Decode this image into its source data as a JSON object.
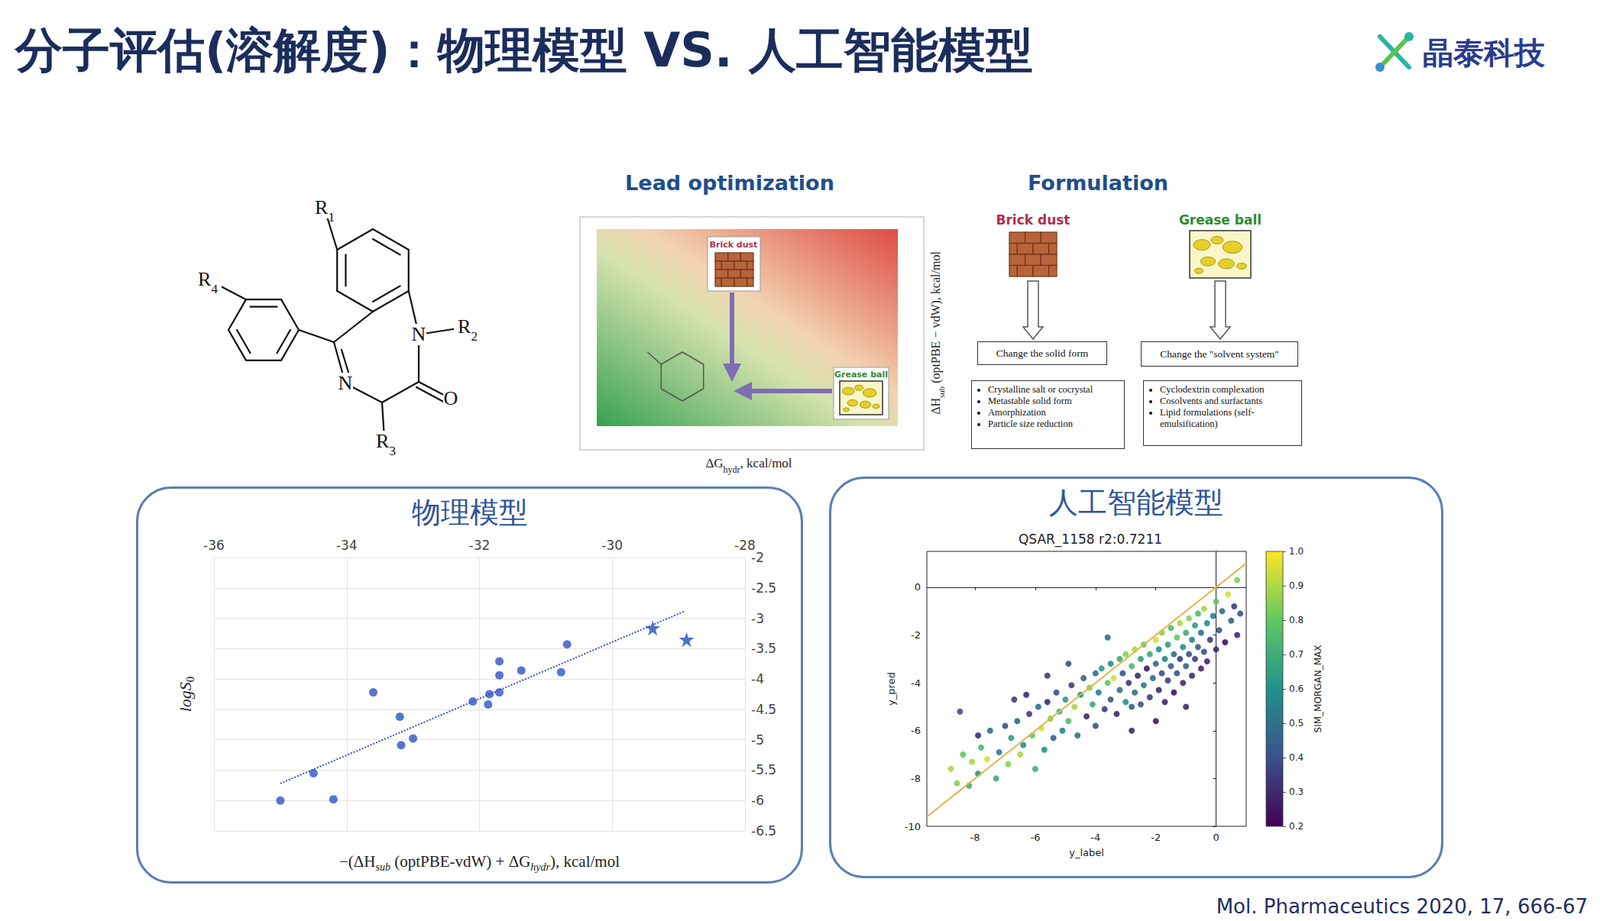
{
  "slide": {
    "title": "分子评估(溶解度)：物理模型 VS. 人工智能模型",
    "logo": "晶泰科技",
    "citation": "Mol. Pharmaceutics 2020, 17, 666-67"
  },
  "structure": {
    "atom_labels": [
      "R1",
      "R2",
      "R3",
      "R4",
      "N",
      "N",
      "O"
    ]
  },
  "lead_optimization": {
    "heading": "Lead optimization",
    "brick_dust": "Brick dust",
    "grease_ball": "Grease ball",
    "x_label": [
      {
        "t": "ΔG"
      },
      {
        "sub": "hydr"
      },
      {
        "t": ", kcal/mol"
      }
    ],
    "y_label": [
      {
        "t": "ΔH"
      },
      {
        "sub": "sub"
      },
      {
        "t": " (optPBE − vdW), kcal/mol"
      }
    ]
  },
  "formulation": {
    "heading": "Formulation",
    "columns": [
      {
        "label": "Brick dust",
        "action": "Change the solid form",
        "items": [
          "Crystalline salt or cocrystal",
          "Metastable solid form",
          "Amorphization",
          "Particle size reduction"
        ]
      },
      {
        "label": "Grease ball",
        "action": "Change the \"solvent system\"",
        "items": [
          "Cyclodextrin complexation",
          "Cosolvents and surfactants",
          "Lipid formulations (self-emulsification)"
        ]
      }
    ]
  },
  "chart_data": [
    {
      "type": "scatter",
      "title": "物理模型",
      "xlabel": [
        {
          "t": "−(ΔH"
        },
        {
          "sub": "sub"
        },
        {
          "t": " (optPBE-vdW) + ΔG"
        },
        {
          "sub": "hydr"
        },
        {
          "t": "), kcal/mol"
        }
      ],
      "ylabel": [
        {
          "t": "logS"
        },
        {
          "sub": "0"
        }
      ],
      "xlim": [
        -36,
        -28
      ],
      "xticks": [
        -36,
        -34,
        -32,
        -30,
        -28
      ],
      "ylim": [
        -6.5,
        -2
      ],
      "yticks": [
        -6.5,
        -6,
        -5.5,
        -5,
        -4.5,
        -4,
        -3.5,
        -3,
        -2.5,
        -2
      ],
      "grid": true,
      "series": [
        {
          "type": "scatter",
          "marker": "circle",
          "color": "#3153c4",
          "x": [
            -35.0,
            -34.5,
            -34.2,
            -33.6,
            -33.2,
            -33.18,
            -33.0,
            -32.1,
            -31.87,
            -31.85,
            -31.7,
            -31.7,
            -31.7,
            -31.37,
            -30.77,
            -30.68
          ],
          "y": [
            -6.0,
            -5.55,
            -5.98,
            -4.22,
            -4.62,
            -5.09,
            -4.98,
            -4.37,
            -4.42,
            -4.25,
            -4.22,
            -3.94,
            -3.71,
            -3.86,
            -3.89,
            -3.43
          ]
        },
        {
          "type": "scatter",
          "marker": "star",
          "color": "#2a4bb8",
          "x": [
            -29.39,
            -28.88
          ],
          "y": [
            -3.16,
            -3.35
          ]
        },
        {
          "type": "line",
          "line_style": "dotted",
          "color": "#3153c4",
          "x": [
            -35.0,
            -28.9
          ],
          "y": [
            -5.72,
            -2.88
          ]
        }
      ]
    },
    {
      "type": "scatter",
      "title": "人工智能模型",
      "subtitle": "QSAR_1158 r2:0.7211",
      "xlabel": "y_label",
      "ylabel": "y_pred",
      "xlim": [
        -9.6,
        1
      ],
      "xticks": [
        -8,
        -6,
        -4,
        -2,
        0
      ],
      "ylim": [
        -10,
        1.5
      ],
      "yticks": [
        -10,
        -8,
        -6,
        -4,
        -2,
        0
      ],
      "grid": false,
      "colorbar": {
        "label": "SIM_MORGAN_MAX",
        "range": [
          0.2,
          1
        ],
        "ticks": [
          0.2,
          0.3,
          0.4,
          0.5,
          0.6,
          0.7,
          0.8,
          0.9,
          {
            "value": 1,
            "label": "1.0"
          }
        ],
        "colors": [
          "#440154",
          "#3b528b",
          "#21918c",
          "#5ec962",
          "#fde725"
        ]
      },
      "series": [
        {
          "type": "line",
          "line_style": "solid",
          "color": "#e3b54a",
          "x": [
            -9.6,
            1
          ],
          "y": [
            -9.6,
            1
          ]
        },
        {
          "type": "scatter",
          "marker": "circle",
          "points": [
            [
              -8.8,
              -7.6,
              0.9
            ],
            [
              -8.6,
              -8.2,
              0.85
            ],
            [
              -8.4,
              -7.0,
              0.8
            ],
            [
              -8.2,
              -8.3,
              0.7
            ],
            [
              -8.1,
              -7.3,
              0.9
            ],
            [
              -7.9,
              -7.8,
              0.6
            ],
            [
              -7.8,
              -6.7,
              0.75
            ],
            [
              -7.6,
              -7.2,
              0.95
            ],
            [
              -7.5,
              -6.0,
              0.5
            ],
            [
              -7.3,
              -8.0,
              0.7
            ],
            [
              -7.2,
              -6.9,
              0.55
            ],
            [
              -7.0,
              -5.8,
              0.4
            ],
            [
              -6.9,
              -7.4,
              0.85
            ],
            [
              -6.8,
              -6.3,
              0.65
            ],
            [
              -6.6,
              -5.6,
              0.45
            ],
            [
              -6.5,
              -7.0,
              0.9
            ],
            [
              -6.4,
              -6.6,
              0.6
            ],
            [
              -6.2,
              -5.3,
              0.35
            ],
            [
              -6.1,
              -6.2,
              0.8
            ],
            [
              -6.0,
              -7.6,
              0.7
            ],
            [
              -5.9,
              -5.0,
              0.5
            ],
            [
              -5.8,
              -5.9,
              0.95
            ],
            [
              -5.7,
              -6.8,
              0.6
            ],
            [
              -5.6,
              -4.8,
              0.3
            ],
            [
              -5.5,
              -5.5,
              0.85
            ],
            [
              -5.4,
              -6.3,
              0.45
            ],
            [
              -5.3,
              -4.4,
              0.4
            ],
            [
              -5.2,
              -5.2,
              0.7
            ],
            [
              -5.1,
              -6.0,
              0.55
            ],
            [
              -5.0,
              -4.7,
              0.65
            ],
            [
              -4.9,
              -5.6,
              0.75
            ],
            [
              -4.8,
              -4.1,
              0.35
            ],
            [
              -4.7,
              -5.0,
              0.9
            ],
            [
              -4.6,
              -6.2,
              0.5
            ],
            [
              -4.5,
              -4.5,
              0.6
            ],
            [
              -4.4,
              -3.8,
              0.45
            ],
            [
              -4.3,
              -5.4,
              0.3
            ],
            [
              -4.2,
              -4.2,
              0.85
            ],
            [
              -4.1,
              -4.9,
              0.7
            ],
            [
              -4.0,
              -3.6,
              0.5
            ],
            [
              -4.0,
              -5.8,
              0.4
            ],
            [
              -3.9,
              -4.4,
              0.55
            ],
            [
              -3.8,
              -3.4,
              0.65
            ],
            [
              -3.7,
              -5.1,
              0.35
            ],
            [
              -3.6,
              -4.0,
              0.8
            ],
            [
              -3.5,
              -4.7,
              0.45
            ],
            [
              -3.5,
              -3.2,
              0.6
            ],
            [
              -3.4,
              -3.8,
              0.95
            ],
            [
              -3.3,
              -5.3,
              0.3
            ],
            [
              -3.2,
              -4.3,
              0.5
            ],
            [
              -3.2,
              -3.0,
              0.7
            ],
            [
              -3.1,
              -3.6,
              0.4
            ],
            [
              -3.0,
              -4.8,
              0.6
            ],
            [
              -3.0,
              -2.8,
              0.85
            ],
            [
              -2.9,
              -4.0,
              0.35
            ],
            [
              -2.8,
              -3.3,
              0.75
            ],
            [
              -2.8,
              -5.0,
              0.45
            ],
            [
              -2.7,
              -2.6,
              0.9
            ],
            [
              -2.7,
              -4.4,
              0.5
            ],
            [
              -2.6,
              -3.7,
              0.3
            ],
            [
              -2.5,
              -3.0,
              0.65
            ],
            [
              -2.5,
              -4.9,
              0.4
            ],
            [
              -2.4,
              -2.4,
              0.8
            ],
            [
              -2.4,
              -4.1,
              0.55
            ],
            [
              -2.3,
              -3.4,
              0.25
            ],
            [
              -2.2,
              -2.8,
              0.7
            ],
            [
              -2.2,
              -4.6,
              0.35
            ],
            [
              -2.1,
              -3.8,
              0.5
            ],
            [
              -2.0,
              -2.2,
              0.95
            ],
            [
              -2.0,
              -3.2,
              0.45
            ],
            [
              -1.9,
              -4.3,
              0.3
            ],
            [
              -1.9,
              -2.6,
              0.6
            ],
            [
              -1.8,
              -3.6,
              0.4
            ],
            [
              -1.8,
              -1.9,
              0.85
            ],
            [
              -1.7,
              -3.0,
              0.55
            ],
            [
              -1.7,
              -4.8,
              0.3
            ],
            [
              -1.6,
              -2.4,
              0.65
            ],
            [
              -1.6,
              -3.9,
              0.35
            ],
            [
              -1.5,
              -1.7,
              0.75
            ],
            [
              -1.5,
              -3.3,
              0.45
            ],
            [
              -1.4,
              -2.8,
              0.5
            ],
            [
              -1.4,
              -4.4,
              0.25
            ],
            [
              -1.3,
              -2.1,
              0.8
            ],
            [
              -1.3,
              -3.6,
              0.4
            ],
            [
              -1.2,
              -1.5,
              0.9
            ],
            [
              -1.2,
              -3.0,
              0.35
            ],
            [
              -1.1,
              -2.5,
              0.6
            ],
            [
              -1.1,
              -4.0,
              0.3
            ],
            [
              -1.0,
              -1.9,
              0.7
            ],
            [
              -1.0,
              -3.3,
              0.45
            ],
            [
              -0.9,
              -2.8,
              0.4
            ],
            [
              -0.9,
              -1.3,
              0.85
            ],
            [
              -0.8,
              -3.7,
              0.3
            ],
            [
              -0.8,
              -2.2,
              0.55
            ],
            [
              -0.7,
              -1.6,
              0.65
            ],
            [
              -0.7,
              -3.0,
              0.35
            ],
            [
              -0.6,
              -2.5,
              0.45
            ],
            [
              -0.6,
              -1.1,
              0.75
            ],
            [
              -0.5,
              -3.4,
              0.3
            ],
            [
              -0.5,
              -1.9,
              0.5
            ],
            [
              -0.4,
              -2.7,
              0.4
            ],
            [
              -0.4,
              -0.9,
              0.9
            ],
            [
              -0.3,
              -1.5,
              0.6
            ],
            [
              -0.3,
              -3.1,
              0.3
            ],
            [
              -0.2,
              -2.2,
              0.35
            ],
            [
              -0.1,
              -1.2,
              0.55
            ],
            [
              0.0,
              -2.6,
              0.3
            ],
            [
              0.0,
              -0.6,
              0.8
            ],
            [
              0.1,
              -1.8,
              0.4
            ],
            [
              0.2,
              -1.0,
              0.5
            ],
            [
              0.3,
              -2.3,
              0.25
            ],
            [
              0.4,
              -0.3,
              0.95
            ],
            [
              0.5,
              -1.4,
              0.45
            ],
            [
              0.6,
              -0.8,
              0.35
            ],
            [
              0.7,
              -2.0,
              0.3
            ],
            [
              0.7,
              0.3,
              0.85
            ],
            [
              0.8,
              -1.1,
              0.4
            ],
            [
              -8.5,
              -5.2,
              0.4
            ],
            [
              -7.9,
              -6.2,
              0.3
            ],
            [
              -6.7,
              -4.7,
              0.35
            ],
            [
              -6.3,
              -4.5,
              0.3
            ],
            [
              -5.6,
              -3.7,
              0.35
            ],
            [
              -4.9,
              -3.2,
              0.4
            ],
            [
              -2.8,
              -6.0,
              0.3
            ],
            [
              -2.0,
              -5.6,
              0.25
            ],
            [
              -1.0,
              -5.0,
              0.3
            ],
            [
              -3.6,
              -2.1,
              0.5
            ]
          ]
        }
      ]
    }
  ]
}
